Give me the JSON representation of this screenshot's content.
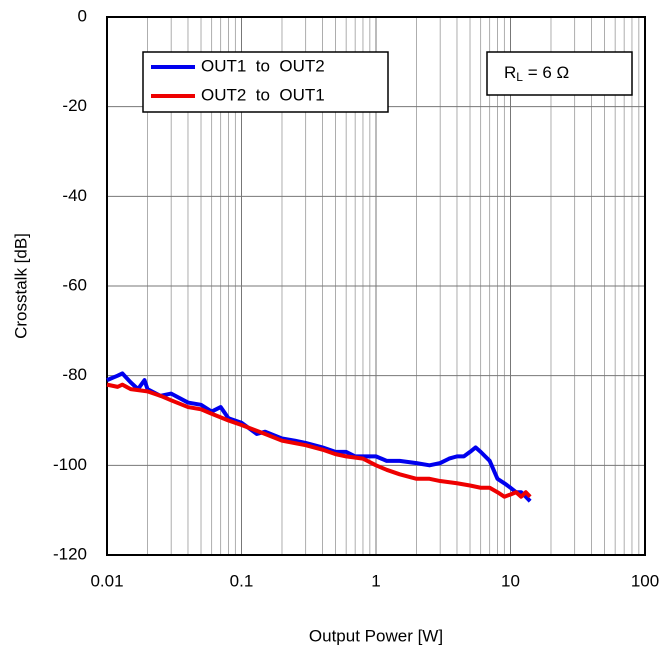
{
  "chart_data": {
    "type": "line",
    "xlabel": "Output Power [W]",
    "ylabel": "Crosstalk [dB]",
    "xscale": "log",
    "grid": true,
    "legend": "upper left",
    "xlim": [
      0.01,
      100
    ],
    "xticks": [
      0.01,
      0.1,
      1,
      10,
      100
    ],
    "ylim": [
      -120,
      0
    ],
    "yticks": [
      -120,
      -100,
      -80,
      -60,
      -40,
      -20,
      0
    ],
    "annotation": {
      "text": "R",
      "sub": "L",
      "rest": " = 6 Ω"
    },
    "series": [
      {
        "name": "OUT1  to  OUT2",
        "color": "#0000ee",
        "x": [
          0.01,
          0.012,
          0.013,
          0.015,
          0.017,
          0.019,
          0.02,
          0.025,
          0.03,
          0.04,
          0.05,
          0.06,
          0.07,
          0.08,
          0.1,
          0.13,
          0.15,
          0.2,
          0.25,
          0.3,
          0.4,
          0.5,
          0.6,
          0.7,
          0.8,
          1,
          1.2,
          1.5,
          2,
          2.5,
          3,
          3.5,
          4,
          4.5,
          5,
          5.5,
          6,
          7,
          8,
          9,
          10,
          11,
          12,
          13,
          14
        ],
        "values": [
          -81,
          -80,
          -79.5,
          -81.5,
          -83,
          -81,
          -83,
          -84.5,
          -84,
          -86,
          -86.5,
          -88,
          -87,
          -89.5,
          -90.5,
          -93,
          -92.5,
          -94,
          -94.5,
          -95,
          -96,
          -97,
          -97,
          -98,
          -98,
          -98,
          -99,
          -99,
          -99.5,
          -100,
          -99.5,
          -98.5,
          -98,
          -98,
          -97,
          -96,
          -97,
          -99,
          -103,
          -104,
          -105,
          -106,
          -106,
          -107,
          -108
        ]
      },
      {
        "name": "OUT2  to  OUT1",
        "color": "#ee0000",
        "x": [
          0.01,
          0.012,
          0.013,
          0.015,
          0.02,
          0.025,
          0.03,
          0.04,
          0.05,
          0.06,
          0.08,
          0.1,
          0.15,
          0.2,
          0.3,
          0.4,
          0.5,
          0.6,
          0.8,
          1,
          1.2,
          1.5,
          2,
          2.5,
          3,
          4,
          5,
          6,
          7,
          8,
          9,
          10,
          11,
          12,
          13,
          14
        ],
        "values": [
          -82,
          -82.5,
          -82,
          -83,
          -83.5,
          -84.5,
          -85.5,
          -87,
          -87.5,
          -88.5,
          -90,
          -91,
          -93,
          -94.5,
          -95.5,
          -96.5,
          -97.5,
          -98,
          -98.5,
          -100,
          -101,
          -102,
          -103,
          -103,
          -103.5,
          -104,
          -104.5,
          -105,
          -105,
          -106,
          -107,
          -106.5,
          -106,
          -107,
          -106,
          -107
        ]
      }
    ]
  }
}
